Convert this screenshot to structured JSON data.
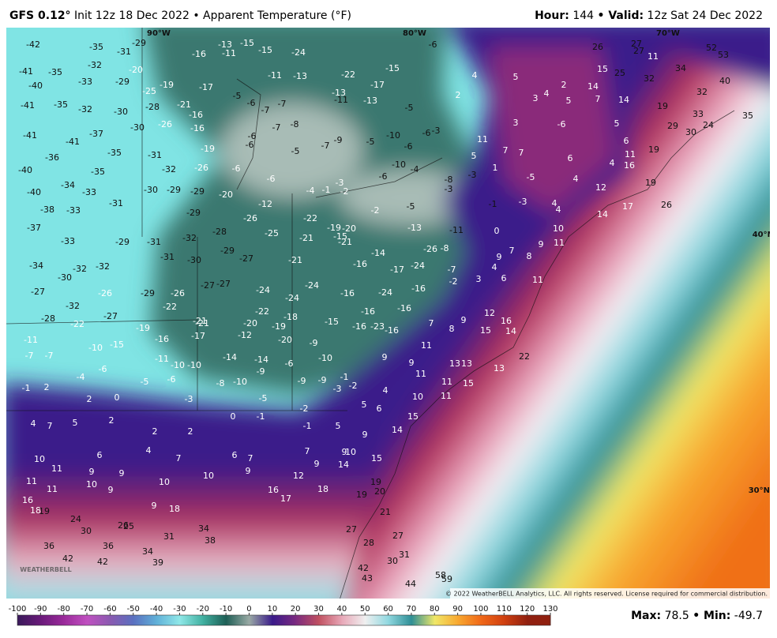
{
  "header": {
    "model": "GFS 0.12°",
    "title": "Init 12z 18 Dec 2022 • Apparent Temperature (°F)",
    "hour_label": "Hour:",
    "hour": 144,
    "valid_label": "• Valid:",
    "valid": "12z Sat 24 Dec 2022"
  },
  "map": {
    "lon_labels": [
      "90°W",
      "80°W",
      "70°W"
    ],
    "lat_labels": [
      "40°N",
      "30°N"
    ],
    "logo": "WEATHERBELL",
    "copyright": "© 2022 WeatherBELL Analytics, LLC. All rights reserved. License required for commercial distribution.",
    "labels": [
      -42,
      -35,
      -29,
      -31,
      -32,
      -41,
      -35,
      -40,
      -33,
      -29,
      -41,
      -35,
      -32,
      -30,
      -30,
      -37,
      -41,
      -41,
      -36,
      -35,
      -40,
      -35,
      -31,
      -32,
      -34,
      -40,
      -33,
      -30,
      -29,
      -29,
      -31,
      -38,
      -33,
      -29,
      -37,
      -33,
      -29,
      -31,
      -32,
      -28,
      -34,
      -32,
      -32,
      -30,
      -31,
      -30,
      -29,
      -27,
      -27,
      -26,
      -29,
      -26,
      -32,
      -22,
      -27,
      -28,
      -22,
      -19,
      -21,
      -11,
      -10,
      -15,
      -16,
      -7,
      -7,
      -11,
      -10,
      -14,
      -4,
      -6,
      -5,
      -6,
      -8,
      -10,
      -1,
      2,
      2,
      0,
      -3,
      0,
      -1,
      -2,
      4,
      7,
      5,
      2,
      2,
      2,
      -1,
      5,
      9,
      10,
      11,
      6,
      4,
      7,
      6,
      7,
      7,
      9,
      9,
      10,
      14,
      15,
      11,
      9,
      10,
      9,
      10,
      10,
      9,
      12,
      18,
      19,
      20,
      11,
      9,
      16,
      18,
      19,
      9,
      18,
      16,
      17,
      19,
      21,
      24,
      30,
      26,
      25,
      34,
      31,
      38,
      27,
      28,
      27,
      36,
      36,
      34,
      42,
      42,
      39,
      30,
      31,
      42,
      43,
      44,
      58,
      59,
      -6,
      4,
      5,
      2,
      11,
      7,
      3,
      5,
      1,
      7,
      26,
      27,
      27,
      11,
      15,
      25,
      32,
      34,
      52,
      53,
      40,
      32,
      14,
      7,
      14,
      19,
      33,
      29,
      30,
      24,
      35,
      2,
      4,
      3,
      5,
      -6,
      5,
      6,
      11,
      4,
      16,
      19,
      6,
      4,
      4,
      4,
      12,
      17,
      19,
      26,
      14,
      10,
      11,
      9,
      8,
      7,
      9,
      4,
      6,
      3,
      11,
      12,
      16,
      14,
      9,
      8,
      7,
      15,
      22,
      13,
      13,
      13,
      9,
      9,
      11,
      11,
      15,
      10,
      4,
      11,
      15,
      14,
      6,
      5,
      11,
      -13,
      -15,
      -15,
      -16,
      -11,
      -24,
      -20,
      -19,
      -17,
      -11,
      -13,
      -22,
      -17,
      -15,
      -13,
      -11,
      -13,
      -21,
      -28,
      -25,
      -16,
      -16,
      -26,
      -19,
      -5,
      -6,
      -7,
      -7,
      -8,
      -7,
      -6,
      -6,
      -5,
      -7,
      -9,
      -5,
      -10,
      -6,
      -6,
      -3,
      -5,
      -6,
      -26,
      -20,
      -6,
      -4,
      -1,
      -3,
      -2,
      -2,
      -10,
      -6,
      -4,
      -12,
      -26,
      -22,
      -25,
      -21,
      -19,
      -20,
      -15,
      -21,
      -13,
      -11,
      0,
      -5,
      -8,
      -3,
      -3,
      -1,
      -3,
      -5,
      -21,
      -16,
      -14,
      -17,
      -24,
      -26,
      -8,
      -7,
      -2,
      -16,
      -24,
      -16,
      -24,
      -24,
      -24,
      -27,
      -27,
      -22,
      -18,
      -20,
      -19,
      -12,
      -20,
      -9,
      -15,
      -16,
      -16,
      -16,
      -23,
      -16,
      -17,
      -10,
      -14,
      -9,
      -9,
      -9,
      -10,
      -1,
      -2,
      -3,
      -5,
      -6,
      -21
    ]
  },
  "colorbar": {
    "ticks": [
      -100,
      -90,
      -80,
      -70,
      -60,
      -50,
      -40,
      -30,
      -20,
      -10,
      0,
      10,
      20,
      30,
      40,
      50,
      60,
      70,
      80,
      90,
      100,
      110,
      120,
      130
    ],
    "colors": [
      "#3a1a5a",
      "#6a1a7a",
      "#9a2a9a",
      "#c050c0",
      "#8a5ab0",
      "#5a70c0",
      "#60b0d8",
      "#90e8e8",
      "#40b0a0",
      "#1e5e55",
      "#9aaaa5",
      "#3a1a8a",
      "#7a2a80",
      "#c05060",
      "#e8a8b8",
      "#f0f0f0",
      "#90d8e0",
      "#2e8e95",
      "#f0e868",
      "#f8a830",
      "#f06818",
      "#d04010",
      "#902010"
    ]
  },
  "stats": {
    "max_label": "Max:",
    "max": 78.5,
    "min_label": "• Min:",
    "min": -49.7
  }
}
